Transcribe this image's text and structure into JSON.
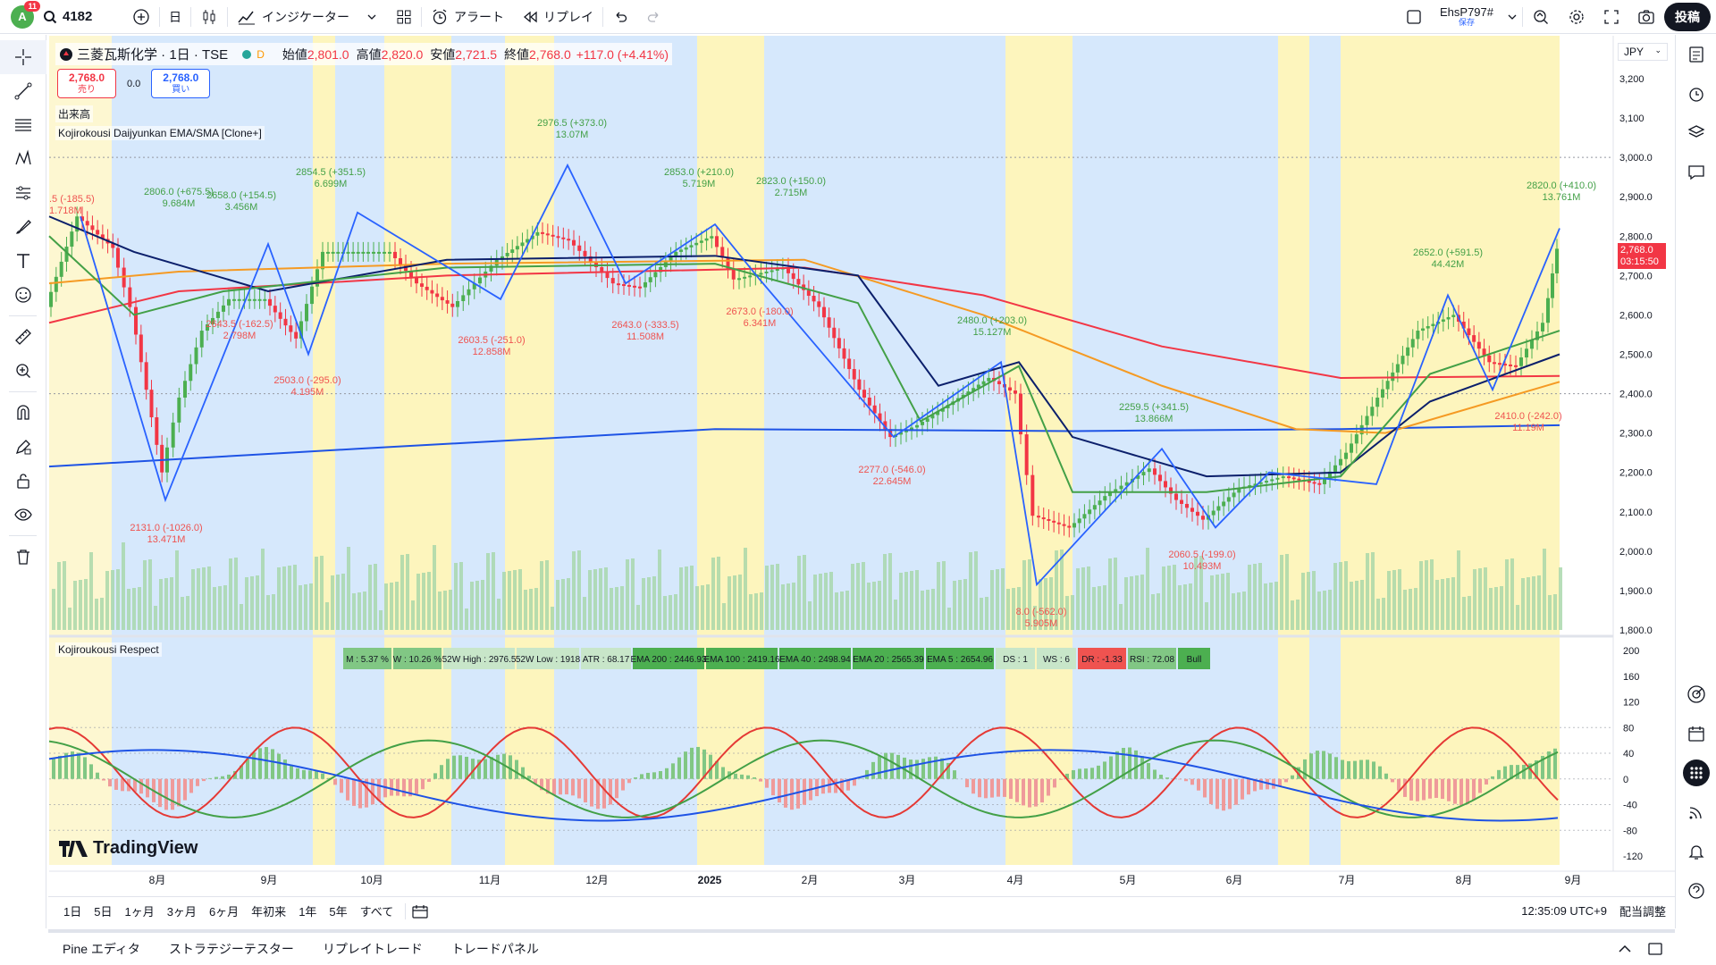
{
  "topbar": {
    "avatar_letter": "A",
    "notification_count": "11",
    "symbol": "4182",
    "interval": "日",
    "indicators_label": "インジケーター",
    "alert_label": "アラート",
    "replay_label": "リプレイ",
    "layout_name": "EhsP797#",
    "layout_status": "保存",
    "publish_label": "投稿"
  },
  "legend": {
    "title": "三菱瓦斯化学 · 1日 · TSE",
    "market_status": "D",
    "open_label": "始値",
    "open": "2,801.0",
    "high_label": "高値",
    "high": "2,820.0",
    "low_label": "安値",
    "low": "2,721.5",
    "close_label": "終値",
    "close": "2,768.0",
    "change": "+117.0 (+4.41%)"
  },
  "trade": {
    "sell_price": "2,768.0",
    "sell_label": "売り",
    "spread": "0.0",
    "buy_price": "2,768.0",
    "buy_label": "買い"
  },
  "indicators": {
    "volume_label": "出来高",
    "ema_label": "Kojirokousi Daijyunkan EMA/SMA [Clone+]",
    "respect_label": "Kojiroukousi Respect"
  },
  "price_axis": {
    "currency": "JPY",
    "ticks": [
      "3,200",
      "3,100",
      "3,000.0",
      "2,900.0",
      "2,800.0",
      "2,700.0",
      "2,600.0",
      "2,500.0",
      "2,400.0",
      "2,300.0",
      "2,200.0",
      "2,100.0",
      "2,000.0",
      "1,900.0",
      "1,800.0"
    ],
    "last_price": "2,768.0",
    "countdown": "03:15:50"
  },
  "osc_axis": {
    "ticks": [
      "200",
      "160",
      "120",
      "80",
      "40",
      "0",
      "-40",
      "-80",
      "-120"
    ]
  },
  "time_axis": [
    "8月",
    "9月",
    "10月",
    "11月",
    "12月",
    "2025",
    "2月",
    "3月",
    "4月",
    "5月",
    "6月",
    "7月",
    "8月",
    "9月"
  ],
  "stats": [
    {
      "text": "M : 5.37 %",
      "color": "#81c784"
    },
    {
      "text": "W : 10.26 %",
      "color": "#81c784"
    },
    {
      "text": "52W High : 2976.5",
      "color": "#c8e6c9"
    },
    {
      "text": "52W Low : 1918",
      "color": "#c8e6c9"
    },
    {
      "text": "ATR : 68.17",
      "color": "#c8e6c9"
    },
    {
      "text": "EMA 200 : 2446.93",
      "color": "#4caf50"
    },
    {
      "text": "EMA 100 : 2419.16",
      "color": "#4caf50"
    },
    {
      "text": "EMA 40 : 2498.94",
      "color": "#4caf50"
    },
    {
      "text": "EMA 20 : 2565.39",
      "color": "#4caf50"
    },
    {
      "text": "EMA 5 : 2654.96",
      "color": "#4caf50"
    },
    {
      "text": "DS : 1",
      "color": "#c8e6c9"
    },
    {
      "text": "WS : 6",
      "color": "#c8e6c9"
    },
    {
      "text": "DR : -1.33",
      "color": "#ef5350"
    },
    {
      "text": "RSI : 72.08",
      "color": "#81c784"
    },
    {
      "text": "Bull",
      "color": "#4caf50"
    }
  ],
  "annotations_green": [
    {
      "text": "2806.0 (+675.5)",
      "sub": "9.684M"
    },
    {
      "text": "2658.0 (+154.5)",
      "sub": "3.456M"
    },
    {
      "text": "2854.5 (+351.5)",
      "sub": "6.699M"
    },
    {
      "text": "2976.5 (+373.0)",
      "sub": "13.07M"
    },
    {
      "text": "2853.0 (+210.0)",
      "sub": "5.719M"
    },
    {
      "text": "2823.0 (+150.0)",
      "sub": "2.715M"
    },
    {
      "text": "2480.0 (+203.0)",
      "sub": "15.127M"
    },
    {
      "text": "2259.5 (+341.5)",
      "sub": "13.866M"
    },
    {
      "text": "2652.0 (+591.5)",
      "sub": "44.42M"
    },
    {
      "text": "2820.0 (+410.0)",
      "sub": "13.761M"
    }
  ],
  "annotations_red": [
    {
      "text": ".5 (-185.5)",
      "sub": "1.718M"
    },
    {
      "text": "2643.5 (-162.5)",
      "sub": "2.798M"
    },
    {
      "text": "2503.0 (-295.0)",
      "sub": "4.195M"
    },
    {
      "text": "2603.5 (-251.0)",
      "sub": "12.858M"
    },
    {
      "text": "2643.0 (-333.5)",
      "sub": "11.508M"
    },
    {
      "text": "2673.0 (-180.0)",
      "sub": "6.341M"
    },
    {
      "text": "2131.0 (-1026.0)",
      "sub": "13.471M"
    },
    {
      "text": "2277.0 (-546.0)",
      "sub": "22.645M"
    },
    {
      "text": "2060.5 (-199.0)",
      "sub": "10.493M"
    },
    {
      "text": "2410.0 (-242.0)",
      "sub": "11.19M"
    },
    {
      "text": "8.0 (-562.0)",
      "sub": "5.905M"
    }
  ],
  "ranges": [
    "1日",
    "5日",
    "1ヶ月",
    "3ヶ月",
    "6ヶ月",
    "年初来",
    "1年",
    "5年",
    "すべて"
  ],
  "clock": "12:35:09 UTC+9",
  "adjust_label": "配当調整",
  "bottom_tabs": [
    "Pine エディタ",
    "ストラテジーテスター",
    "リプレイトレード",
    "トレードパネル"
  ],
  "brand": "TradingView",
  "colors": {
    "up": "#4caf50",
    "down": "#f23645",
    "ema200": "#1e53e5",
    "ema100": "#f23645",
    "ema40": "#f59a23",
    "ema20": "#0b1f6b",
    "ema5": "#43a047"
  }
}
